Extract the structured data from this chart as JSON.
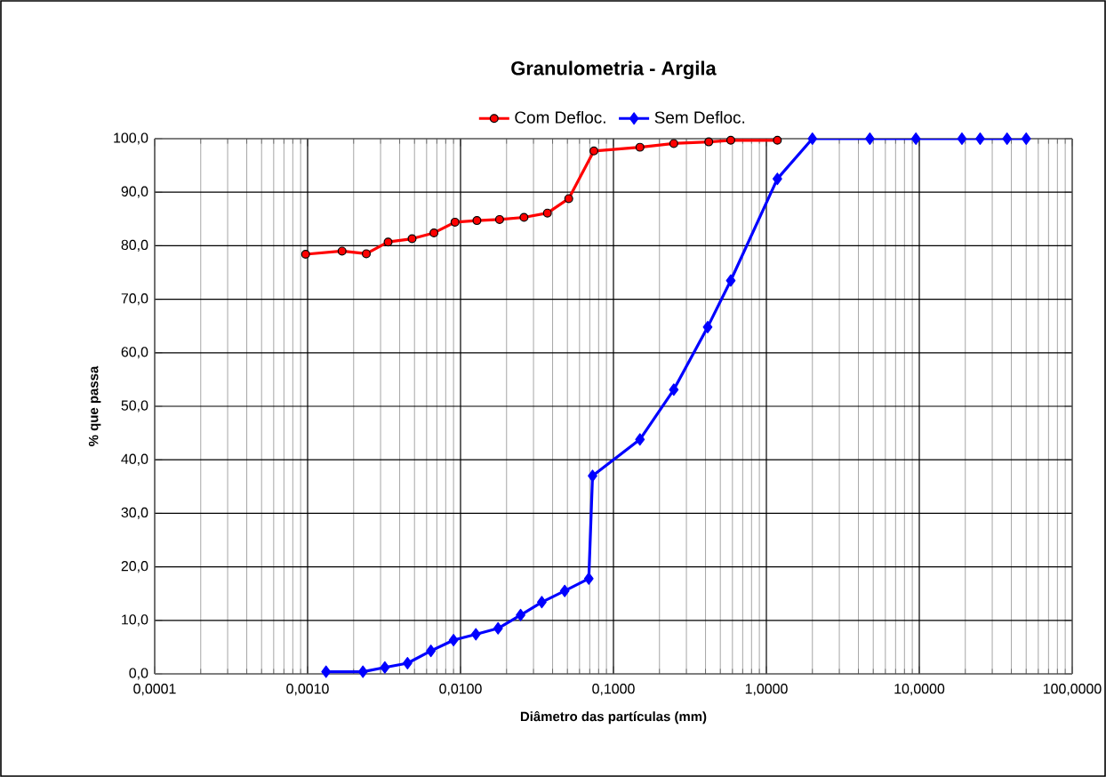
{
  "chart_data": {
    "type": "line",
    "title": "Granulometria - Argila",
    "xlabel": "Diâmetro das partículas (mm)",
    "ylabel": "% que passa",
    "log": "x",
    "grid": true,
    "legend": "top",
    "xlim": [
      0.0001,
      100
    ],
    "ylim": [
      0,
      100
    ],
    "xticks": [
      {
        "value": 0.0001,
        "label": "0,0001"
      },
      {
        "value": 0.001,
        "label": "0,0010"
      },
      {
        "value": 0.01,
        "label": "0,0100"
      },
      {
        "value": 0.1,
        "label": "0,1000"
      },
      {
        "value": 1,
        "label": "1,0000"
      },
      {
        "value": 10,
        "label": "10,0000"
      },
      {
        "value": 100,
        "label": "100,0000"
      }
    ],
    "yticks": [
      {
        "value": 0,
        "label": "0,0"
      },
      {
        "value": 10,
        "label": "10,0"
      },
      {
        "value": 20,
        "label": "20,0"
      },
      {
        "value": 30,
        "label": "30,0"
      },
      {
        "value": 40,
        "label": "40,0"
      },
      {
        "value": 50,
        "label": "50,0"
      },
      {
        "value": 60,
        "label": "60,0"
      },
      {
        "value": 70,
        "label": "70,0"
      },
      {
        "value": 80,
        "label": "80,0"
      },
      {
        "value": 90,
        "label": "90,0"
      },
      {
        "value": 100,
        "label": "100,0"
      }
    ],
    "series": [
      {
        "name": "Com Defloc.",
        "color": "#ff0000",
        "marker": "circle",
        "x": [
          0.00097,
          0.00168,
          0.00242,
          0.00336,
          0.00482,
          0.0067,
          0.0092,
          0.0128,
          0.018,
          0.026,
          0.037,
          0.051,
          0.0745,
          0.149,
          0.248,
          0.42,
          0.585,
          1.18
        ],
        "values": [
          78.4,
          79.0,
          78.5,
          80.7,
          81.3,
          82.4,
          84.4,
          84.7,
          84.9,
          85.3,
          86.1,
          88.8,
          97.7,
          98.4,
          99.1,
          99.4,
          99.7,
          99.7
        ]
      },
      {
        "name": "Sem Defloc.",
        "color": "#0000ff",
        "marker": "diamond",
        "x": [
          0.00132,
          0.0023,
          0.0032,
          0.0045,
          0.0064,
          0.009,
          0.0126,
          0.0176,
          0.0247,
          0.034,
          0.048,
          0.069,
          0.073,
          0.149,
          0.248,
          0.413,
          0.585,
          1.18,
          2.0,
          4.75,
          9.5,
          19,
          25,
          37.5,
          50
        ],
        "values": [
          0.4,
          0.4,
          1.2,
          2.0,
          4.3,
          6.3,
          7.4,
          8.5,
          11.0,
          13.4,
          15.5,
          17.8,
          37.0,
          43.8,
          53.1,
          64.8,
          73.5,
          92.5,
          100,
          100,
          100,
          100,
          100,
          100,
          100
        ]
      }
    ]
  }
}
